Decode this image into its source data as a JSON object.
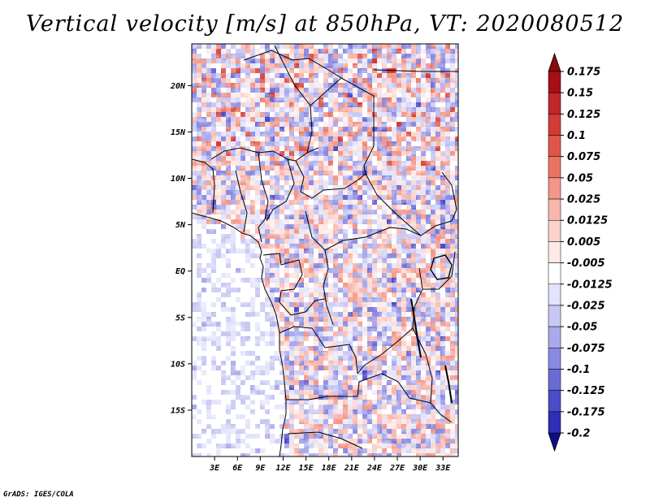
{
  "title": "Vertical velocity [m/s] at 850hPa, VT: 2020080512",
  "footer": "GrADS: IGES/COLA",
  "map": {
    "lat_range": [
      -20,
      24.5
    ],
    "lon_range": [
      0,
      35
    ],
    "lat_ticks": [
      {
        "value": 20,
        "label": "20N"
      },
      {
        "value": 15,
        "label": "15N"
      },
      {
        "value": 10,
        "label": "10N"
      },
      {
        "value": 5,
        "label": "5N"
      },
      {
        "value": 0,
        "label": "EQ"
      },
      {
        "value": -5,
        "label": "5S"
      },
      {
        "value": -10,
        "label": "10S"
      },
      {
        "value": -15,
        "label": "15S"
      }
    ],
    "lon_ticks": [
      {
        "value": 3,
        "label": "3E"
      },
      {
        "value": 6,
        "label": "6E"
      },
      {
        "value": 9,
        "label": "9E"
      },
      {
        "value": 12,
        "label": "12E"
      },
      {
        "value": 15,
        "label": "15E"
      },
      {
        "value": 18,
        "label": "18E"
      },
      {
        "value": 21,
        "label": "21E"
      },
      {
        "value": 24,
        "label": "24E"
      },
      {
        "value": 27,
        "label": "27E"
      },
      {
        "value": 30,
        "label": "30E"
      },
      {
        "value": 33,
        "label": "33E"
      }
    ]
  },
  "colorbar": {
    "levels": [
      {
        "label": "0.175",
        "color": "#a50f15"
      },
      {
        "label": "0.15",
        "color": "#c0262a"
      },
      {
        "label": "0.125",
        "color": "#d43b35"
      },
      {
        "label": "0.1",
        "color": "#e0564a"
      },
      {
        "label": "0.075",
        "color": "#e97464"
      },
      {
        "label": "0.05",
        "color": "#f2978a"
      },
      {
        "label": "0.025",
        "color": "#f8b6ad"
      },
      {
        "label": "0.0125",
        "color": "#fbd3cd"
      },
      {
        "label": "0.005",
        "color": "#fdeae6"
      },
      {
        "label": "-0.005",
        "color": "#ffffff"
      },
      {
        "label": "-0.0125",
        "color": "#e3e3fb"
      },
      {
        "label": "-0.025",
        "color": "#c8c8f4"
      },
      {
        "label": "-0.05",
        "color": "#a9a9ec"
      },
      {
        "label": "-0.075",
        "color": "#8a8ae2"
      },
      {
        "label": "-0.1",
        "color": "#6b6bd6"
      },
      {
        "label": "-0.125",
        "color": "#4c4cc8"
      },
      {
        "label": "-0.175",
        "color": "#2e2eb6"
      },
      {
        "label": "-0.2",
        "color": "#1818a0"
      }
    ],
    "top_arrow_color": "#8b0a0e",
    "bottom_arrow_color": "#0c0c8a"
  }
}
